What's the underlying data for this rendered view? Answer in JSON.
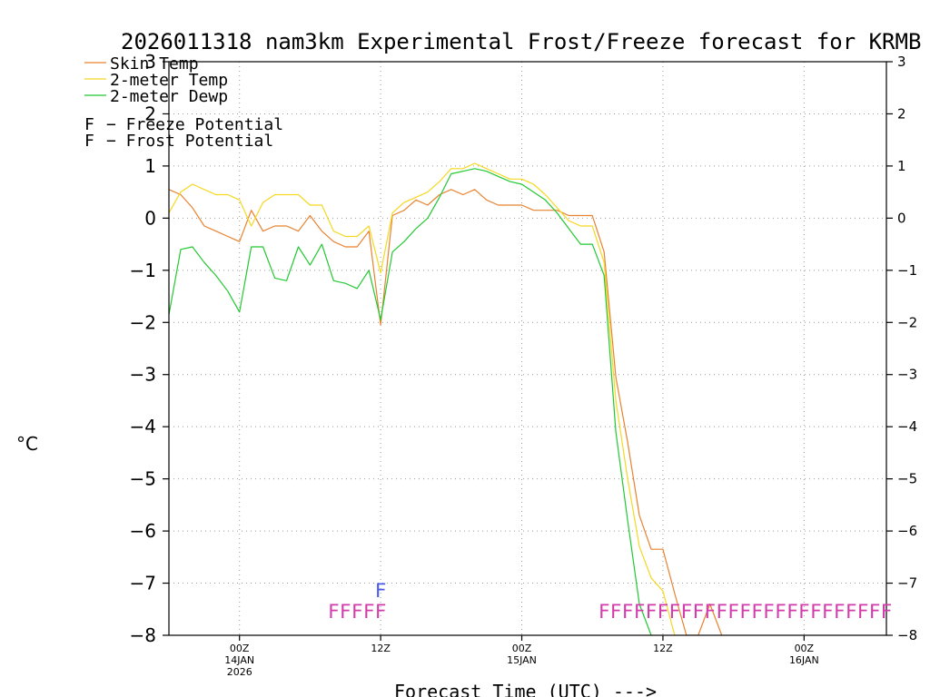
{
  "colors": {
    "skin": "#e8822f",
    "temp": "#f5d820",
    "dewp": "#22c832",
    "freeze": "#d23caa",
    "frost": "#4a5ae8",
    "grid": "#9a9a9a"
  },
  "chart_data": {
    "type": "line",
    "title": "2026011318 nam3km Experimental Frost/Freeze forecast for KRMB",
    "ylabel": "°C",
    "xlabel": "Forecast Time (UTC) --->",
    "ylim": [
      -8,
      3
    ],
    "xlim": [
      0,
      61
    ],
    "y_ticks": [
      "3",
      "2",
      "1",
      "0",
      "−1",
      "−2",
      "−3",
      "−4",
      "−5",
      "−6",
      "−7",
      "−8"
    ],
    "y_tick_values": [
      3,
      2,
      1,
      0,
      -1,
      -2,
      -3,
      -4,
      -5,
      -6,
      -7,
      -8
    ],
    "x_ticks": [
      {
        "hour": 6,
        "line1": "00Z",
        "line2": "14JAN",
        "line3": "2026"
      },
      {
        "hour": 18,
        "line1": "12Z",
        "line2": "",
        "line3": ""
      },
      {
        "hour": 30,
        "line1": "00Z",
        "line2": "15JAN",
        "line3": ""
      },
      {
        "hour": 42,
        "line1": "12Z",
        "line2": "",
        "line3": ""
      },
      {
        "hour": 54,
        "line1": "00Z",
        "line2": "16JAN",
        "line3": ""
      }
    ],
    "legend": [
      {
        "name": "Skin Temp",
        "color_key": "skin"
      },
      {
        "name": "2-meter Temp",
        "color_key": "temp"
      },
      {
        "name": "2-meter Dewp",
        "color_key": "dewp"
      }
    ],
    "potential_legend": [
      {
        "marker": "F",
        "text": "− Freeze Potential",
        "color_key": "freeze"
      },
      {
        "marker": "F",
        "text": "− Frost Potential",
        "color_key": "frost"
      }
    ],
    "series": [
      {
        "name": "Skin Temp",
        "color_key": "skin",
        "x": [
          0,
          1,
          2,
          3,
          4,
          5,
          6,
          7,
          8,
          9,
          10,
          11,
          12,
          13,
          14,
          15,
          16,
          17,
          18,
          19,
          20,
          21,
          22,
          23,
          24,
          25,
          26,
          27,
          28,
          29,
          30,
          31,
          32,
          33,
          34,
          35,
          36,
          37,
          38,
          39,
          40,
          41,
          42,
          43,
          44,
          45,
          46,
          47
        ],
        "values": [
          0.55,
          0.45,
          0.2,
          -0.15,
          -0.25,
          -0.35,
          -0.45,
          0.15,
          -0.25,
          -0.15,
          -0.15,
          -0.25,
          0.05,
          -0.25,
          -0.45,
          -0.55,
          -0.55,
          -0.25,
          -2.05,
          0.05,
          0.15,
          0.35,
          0.25,
          0.45,
          0.55,
          0.45,
          0.55,
          0.35,
          0.25,
          0.25,
          0.25,
          0.15,
          0.15,
          0.15,
          0.05,
          0.05,
          0.05,
          -0.65,
          -3.05,
          -4.3,
          -5.7,
          -6.35,
          -6.35,
          -7.2,
          -8.0,
          -8.0,
          -7.4,
          -8.0
        ]
      },
      {
        "name": "2-meter Temp",
        "color_key": "temp",
        "x": [
          0,
          1,
          2,
          3,
          4,
          5,
          6,
          7,
          8,
          9,
          10,
          11,
          12,
          13,
          14,
          15,
          16,
          17,
          18,
          19,
          20,
          21,
          22,
          23,
          24,
          25,
          26,
          27,
          28,
          29,
          30,
          31,
          32,
          33,
          34,
          35,
          36,
          37,
          38,
          39,
          40,
          41,
          42,
          43
        ],
        "values": [
          0.1,
          0.5,
          0.65,
          0.55,
          0.45,
          0.45,
          0.35,
          -0.15,
          0.3,
          0.45,
          0.45,
          0.45,
          0.25,
          0.25,
          -0.25,
          -0.35,
          -0.35,
          -0.15,
          -1.05,
          0.1,
          0.3,
          0.4,
          0.5,
          0.7,
          0.95,
          0.95,
          1.05,
          0.95,
          0.85,
          0.75,
          0.75,
          0.65,
          0.45,
          0.2,
          -0.05,
          -0.15,
          -0.15,
          -0.85,
          -3.5,
          -5.0,
          -6.3,
          -6.9,
          -7.15,
          -8.0
        ]
      },
      {
        "name": "2-meter Dewp",
        "color_key": "dewp",
        "x": [
          0,
          1,
          2,
          3,
          4,
          5,
          6,
          7,
          8,
          9,
          10,
          11,
          12,
          13,
          14,
          15,
          16,
          17,
          18,
          19,
          20,
          21,
          22,
          23,
          24,
          25,
          26,
          27,
          28,
          29,
          30,
          31,
          32,
          33,
          34,
          35,
          36,
          37,
          38,
          39,
          40,
          41
        ],
        "values": [
          -1.85,
          -0.6,
          -0.55,
          -0.85,
          -1.1,
          -1.4,
          -1.8,
          -0.55,
          -0.55,
          -1.15,
          -1.2,
          -0.55,
          -0.9,
          -0.5,
          -1.2,
          -1.25,
          -1.35,
          -1.0,
          -1.95,
          -0.65,
          -0.45,
          -0.2,
          0.0,
          0.4,
          0.85,
          0.9,
          0.95,
          0.9,
          0.8,
          0.7,
          0.65,
          0.5,
          0.35,
          0.1,
          -0.2,
          -0.5,
          -0.5,
          -1.1,
          -4.1,
          -5.8,
          -7.4,
          -8.0
        ]
      }
    ],
    "frost_markers": [
      {
        "x": 18,
        "label": "F"
      }
    ],
    "freeze_markers": [
      {
        "x": 14,
        "label": "F"
      },
      {
        "x": 15,
        "label": "F"
      },
      {
        "x": 16,
        "label": "F"
      },
      {
        "x": 17,
        "label": "F"
      },
      {
        "x": 18,
        "label": "F"
      },
      {
        "x": 37,
        "label": "F"
      },
      {
        "x": 38,
        "label": "F"
      },
      {
        "x": 39,
        "label": "F"
      },
      {
        "x": 40,
        "label": "F"
      },
      {
        "x": 41,
        "label": "F"
      },
      {
        "x": 42,
        "label": "F"
      },
      {
        "x": 43,
        "label": "F"
      },
      {
        "x": 44,
        "label": "F"
      },
      {
        "x": 45,
        "label": "F"
      },
      {
        "x": 46,
        "label": "F"
      },
      {
        "x": 47,
        "label": "F"
      },
      {
        "x": 48,
        "label": "F"
      },
      {
        "x": 49,
        "label": "F"
      },
      {
        "x": 50,
        "label": "F"
      },
      {
        "x": 51,
        "label": "F"
      },
      {
        "x": 52,
        "label": "F"
      },
      {
        "x": 53,
        "label": "F"
      },
      {
        "x": 54,
        "label": "F"
      },
      {
        "x": 55,
        "label": "F"
      },
      {
        "x": 56,
        "label": "F"
      },
      {
        "x": 57,
        "label": "F"
      },
      {
        "x": 58,
        "label": "F"
      },
      {
        "x": 59,
        "label": "F"
      },
      {
        "x": 60,
        "label": "F"
      },
      {
        "x": 61,
        "label": "F"
      }
    ]
  }
}
